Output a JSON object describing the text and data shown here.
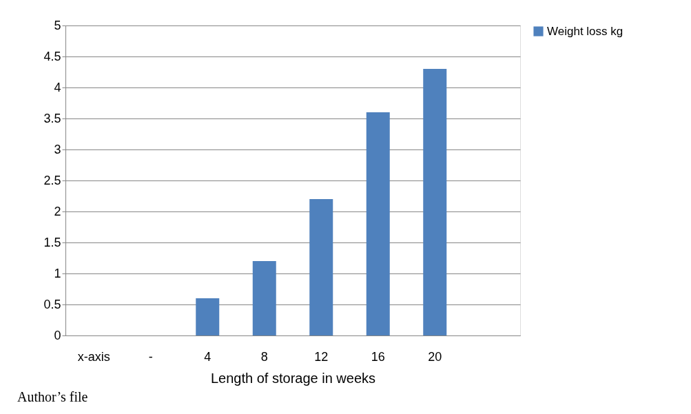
{
  "chart_data": {
    "type": "bar",
    "xlabel": "Length of storage in weeks",
    "categories": [
      "x-axis",
      "-",
      "4",
      "8",
      "12",
      "16",
      "20",
      null
    ],
    "series": [
      {
        "name": "Weight loss kg",
        "color": "#4f81bd",
        "values": [
          null,
          null,
          0.6,
          1.2,
          2.2,
          3.6,
          4.3,
          null
        ]
      }
    ],
    "ylim": [
      0,
      5
    ],
    "yticks": [
      0,
      0.5,
      1,
      1.5,
      2,
      2.5,
      3,
      3.5,
      4,
      4.5,
      5
    ],
    "grid": "y",
    "legend": "right",
    "annotations": [
      "Author’s file"
    ]
  }
}
